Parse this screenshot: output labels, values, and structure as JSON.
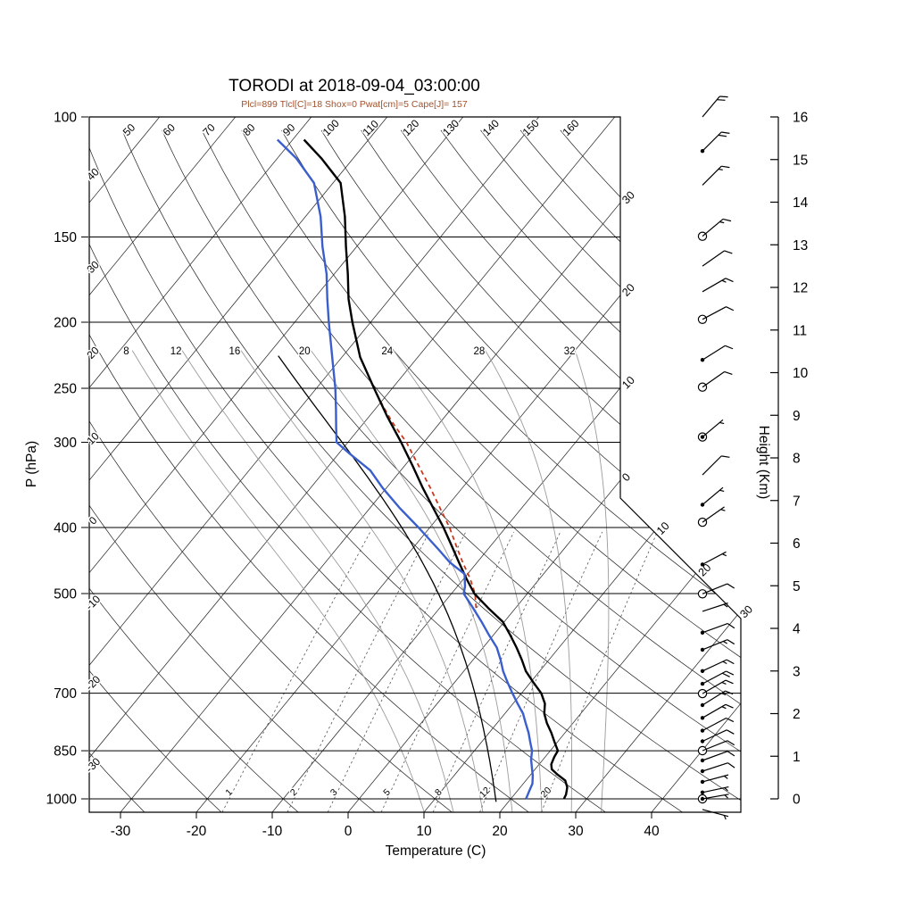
{
  "header": {
    "title": "TORODI at 2018-09-04_03:00:00",
    "subtitle": "Plcl=899 Tlcl[C]=18 Shox=0 Pwat[cm]=5 Cape[J]= 157"
  },
  "chart_data": {
    "type": "skewt",
    "title": "TORODI at 2018-09-04_03:00:00",
    "subtitle": "Plcl=899 Tlcl[C]=18 Shox=0 Pwat[cm]=5 Cape[J]= 157",
    "xlabel": "Temperature (C)",
    "ylabel_left": "P (hPa)",
    "ylabel_right": "Height (Km)",
    "x_ticks_C": [
      -30,
      -20,
      -10,
      0,
      10,
      20,
      30,
      40
    ],
    "pressure_ticks_hPa": [
      100,
      150,
      200,
      250,
      300,
      400,
      500,
      700,
      850,
      1000
    ],
    "height_ticks_km": [
      0,
      1,
      2,
      3,
      4,
      5,
      6,
      7,
      8,
      9,
      10,
      11,
      12,
      13,
      14,
      15,
      16
    ],
    "background": {
      "isotherms_C": {
        "min": -110,
        "max": 40,
        "step": 10
      },
      "right_isotherm_labels": [
        {
          "T": -30,
          "text": "30"
        },
        {
          "T": -20,
          "text": "20"
        },
        {
          "T": -10,
          "text": "10"
        },
        {
          "T": 0,
          "text": "0"
        },
        {
          "T": 10,
          "text": "10"
        },
        {
          "T": 20,
          "text": "20"
        },
        {
          "T": 30,
          "text": "30"
        }
      ],
      "dry_adiabats_C": {
        "min": -30,
        "max": 160,
        "step": 10
      },
      "moist_adiabats_C": [
        8,
        12,
        16,
        20,
        24,
        28,
        32
      ],
      "mixing_ratio_gkg": [
        1,
        2,
        3,
        5,
        8,
        12,
        20
      ]
    },
    "profiles": {
      "temperature": [
        [
          1000,
          27.0
        ],
        [
          985,
          26.8
        ],
        [
          962,
          26.2
        ],
        [
          940,
          25.2
        ],
        [
          922,
          23.6
        ],
        [
          905,
          22.2
        ],
        [
          890,
          21.6
        ],
        [
          868,
          21.2
        ],
        [
          850,
          21.0
        ],
        [
          825,
          19.6
        ],
        [
          800,
          18.2
        ],
        [
          775,
          16.6
        ],
        [
          750,
          15.2
        ],
        [
          725,
          14.2
        ],
        [
          700,
          12.6
        ],
        [
          675,
          10.4
        ],
        [
          650,
          8.2
        ],
        [
          625,
          6.4
        ],
        [
          600,
          4.4
        ],
        [
          575,
          2.2
        ],
        [
          550,
          -0.2
        ],
        [
          525,
          -3.6
        ],
        [
          500,
          -7.0
        ],
        [
          475,
          -9.7
        ],
        [
          450,
          -12.4
        ],
        [
          425,
          -15.2
        ],
        [
          400,
          -18.2
        ],
        [
          375,
          -21.6
        ],
        [
          350,
          -25.2
        ],
        [
          325,
          -28.9
        ],
        [
          300,
          -33.0
        ],
        [
          275,
          -37.6
        ],
        [
          250,
          -42.4
        ],
        [
          225,
          -47.6
        ],
        [
          200,
          -52.4
        ],
        [
          185,
          -55.4
        ],
        [
          170,
          -58.2
        ],
        [
          155,
          -61.4
        ],
        [
          140,
          -64.8
        ],
        [
          125,
          -69.0
        ],
        [
          115,
          -74.2
        ],
        [
          108,
          -78.5
        ]
      ],
      "dewpoint": [
        [
          1000,
          22.0
        ],
        [
          975,
          21.6
        ],
        [
          950,
          21.2
        ],
        [
          925,
          20.4
        ],
        [
          900,
          19.4
        ],
        [
          875,
          18.4
        ],
        [
          850,
          17.6
        ],
        [
          825,
          16.4
        ],
        [
          800,
          15.2
        ],
        [
          775,
          13.8
        ],
        [
          750,
          12.4
        ],
        [
          725,
          10.6
        ],
        [
          700,
          8.8
        ],
        [
          675,
          7.0
        ],
        [
          650,
          5.2
        ],
        [
          625,
          3.6
        ],
        [
          600,
          1.8
        ],
        [
          575,
          -0.6
        ],
        [
          550,
          -3.0
        ],
        [
          525,
          -5.6
        ],
        [
          500,
          -8.4
        ],
        [
          488,
          -9.0
        ],
        [
          468,
          -10.4
        ],
        [
          450,
          -13.6
        ],
        [
          430,
          -16.6
        ],
        [
          400,
          -21.5
        ],
        [
          375,
          -26.0
        ],
        [
          350,
          -30.5
        ],
        [
          330,
          -34.0
        ],
        [
          312,
          -38.5
        ],
        [
          300,
          -41.5
        ],
        [
          285,
          -43.2
        ],
        [
          268,
          -45.2
        ],
        [
          250,
          -47.5
        ],
        [
          230,
          -50.5
        ],
        [
          200,
          -55.5
        ],
        [
          185,
          -58.2
        ],
        [
          170,
          -61.0
        ],
        [
          155,
          -64.5
        ],
        [
          140,
          -68.0
        ],
        [
          125,
          -72.5
        ],
        [
          115,
          -77.5
        ],
        [
          108,
          -82.0
        ]
      ],
      "parcel": [
        [
          525,
          -5.2
        ],
        [
          500,
          -6.9
        ],
        [
          475,
          -9.2
        ],
        [
          450,
          -11.9
        ],
        [
          425,
          -14.6
        ],
        [
          400,
          -17.4
        ],
        [
          375,
          -20.7
        ],
        [
          350,
          -24.2
        ],
        [
          325,
          -28.1
        ],
        [
          300,
          -32.3
        ],
        [
          280,
          -36.4
        ],
        [
          262,
          -40.0
        ]
      ],
      "parcel_moist_adiabat_thetaw_C": 18
    },
    "wind_barbs": [
      {
        "km": 16.0,
        "kt": 20,
        "dir": 40,
        "marker": "none"
      },
      {
        "km": 15.2,
        "kt": 20,
        "dir": 45,
        "marker": "dot"
      },
      {
        "km": 14.4,
        "kt": 15,
        "dir": 45,
        "marker": "none"
      },
      {
        "km": 13.2,
        "kt": 15,
        "dir": 50,
        "marker": "circle"
      },
      {
        "km": 12.5,
        "kt": 10,
        "dir": 55,
        "marker": "none"
      },
      {
        "km": 11.9,
        "kt": 15,
        "dir": 60,
        "marker": "none"
      },
      {
        "km": 11.25,
        "kt": 10,
        "dir": 62,
        "marker": "circle"
      },
      {
        "km": 10.3,
        "kt": 10,
        "dir": 58,
        "marker": "dot"
      },
      {
        "km": 9.66,
        "kt": 10,
        "dir": 55,
        "marker": "circle"
      },
      {
        "km": 8.49,
        "kt": 5,
        "dir": 50,
        "marker": "circle-dot"
      },
      {
        "km": 7.6,
        "kt": 10,
        "dir": 45,
        "marker": "none"
      },
      {
        "km": 6.9,
        "kt": 5,
        "dir": 50,
        "marker": "dot"
      },
      {
        "km": 6.49,
        "kt": 5,
        "dir": 55,
        "marker": "circle"
      },
      {
        "km": 5.5,
        "kt": 5,
        "dir": 62,
        "marker": "dot"
      },
      {
        "km": 4.81,
        "kt": 10,
        "dir": 68,
        "marker": "circle"
      },
      {
        "km": 4.4,
        "kt": 5,
        "dir": 72,
        "marker": "none"
      },
      {
        "km": 3.9,
        "kt": 10,
        "dir": 70,
        "marker": "dot"
      },
      {
        "km": 3.5,
        "kt": 15,
        "dir": 68,
        "marker": "dot"
      },
      {
        "km": 3.0,
        "kt": 15,
        "dir": 65,
        "marker": "dot"
      },
      {
        "km": 2.7,
        "kt": 20,
        "dir": 62,
        "marker": "dot"
      },
      {
        "km": 2.47,
        "kt": 15,
        "dir": 60,
        "marker": "circle"
      },
      {
        "km": 2.2,
        "kt": 15,
        "dir": 58,
        "marker": "dot"
      },
      {
        "km": 1.9,
        "kt": 15,
        "dir": 60,
        "marker": "dot"
      },
      {
        "km": 1.6,
        "kt": 10,
        "dir": 62,
        "marker": "dot"
      },
      {
        "km": 1.35,
        "kt": 10,
        "dir": 65,
        "marker": "dot"
      },
      {
        "km": 1.13,
        "kt": 10,
        "dir": 68,
        "marker": "circle"
      },
      {
        "km": 0.9,
        "kt": 10,
        "dir": 70,
        "marker": "dot"
      },
      {
        "km": 0.65,
        "kt": 10,
        "dir": 72,
        "marker": "dot"
      },
      {
        "km": 0.4,
        "kt": 5,
        "dir": 75,
        "marker": "dot"
      },
      {
        "km": 0.15,
        "kt": 5,
        "dir": 78,
        "marker": "dot"
      },
      {
        "km": 0.0,
        "kt": 5,
        "dir": 80,
        "marker": "circle-dot"
      },
      {
        "km": -0.25,
        "kt": 5,
        "dir": 105,
        "marker": "none"
      }
    ],
    "colors": {
      "temperature": "#000000",
      "dewpoint": "#3A5FCD",
      "parcel": "#C8381D",
      "subtitle": "#A0522D",
      "grid": "#2b2b2b",
      "moist_adiabat": "#9b9b9b",
      "mixing_ratio": "#555555"
    }
  }
}
